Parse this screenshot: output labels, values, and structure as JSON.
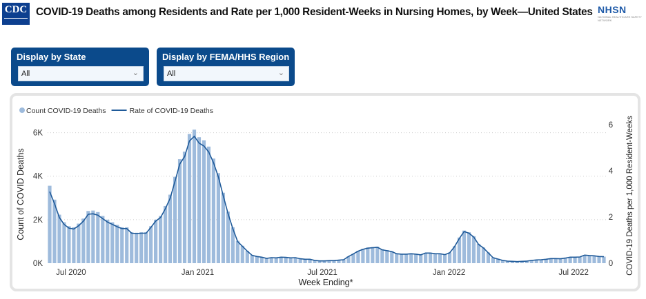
{
  "header": {
    "logo_left": "CDC",
    "title": "COVID-19 Deaths among Residents and Rate per 1,000 Resident-Weeks in Nursing Homes, by Week—United States",
    "logo_right": "NHSN",
    "logo_right_sub": "NATIONAL HEALTHCARE SAFETY NETWORK"
  },
  "filters": [
    {
      "label": "Display by State",
      "value": "All"
    },
    {
      "label": "Display by FEMA/HHS Region",
      "value": "All"
    }
  ],
  "colors": {
    "bar": "#9ebbdc",
    "line": "#1f5a99",
    "filter_bg": "#0b4a8b"
  },
  "chart_data": {
    "type": "bar+line",
    "xlabel": "Week Ending*",
    "ylabel": "Count of COVID Deaths",
    "y2label": "COVID-19 Deaths per 1,000 Resident-Weeks",
    "ylim": [
      0,
      7000
    ],
    "y2lim": [
      0,
      6.3
    ],
    "yticks": [
      "0K",
      "2K",
      "4K",
      "6K"
    ],
    "y2ticks": [
      "0",
      "2",
      "4",
      "6"
    ],
    "xticks": [
      {
        "label": "Jul 2020",
        "date": "2020-07-01"
      },
      {
        "label": "Jan 2021",
        "date": "2021-01-01"
      },
      {
        "label": "Jul 2021",
        "date": "2021-07-01"
      },
      {
        "label": "Jan 2022",
        "date": "2022-01-01"
      },
      {
        "label": "Jul 2022",
        "date": "2022-07-01"
      }
    ],
    "grid": true,
    "legend": {
      "position": "top-left",
      "items": [
        "Count COVID-19 Deaths",
        "Rate of COVID-19 Deaths"
      ]
    },
    "x": [
      "2020-05-31",
      "2020-06-07",
      "2020-06-14",
      "2020-06-21",
      "2020-06-28",
      "2020-07-05",
      "2020-07-12",
      "2020-07-19",
      "2020-07-26",
      "2020-08-02",
      "2020-08-09",
      "2020-08-16",
      "2020-08-23",
      "2020-08-30",
      "2020-09-06",
      "2020-09-13",
      "2020-09-20",
      "2020-09-27",
      "2020-10-04",
      "2020-10-11",
      "2020-10-18",
      "2020-10-25",
      "2020-11-01",
      "2020-11-08",
      "2020-11-15",
      "2020-11-22",
      "2020-11-29",
      "2020-12-06",
      "2020-12-13",
      "2020-12-20",
      "2020-12-27",
      "2021-01-03",
      "2021-01-10",
      "2021-01-17",
      "2021-01-24",
      "2021-01-31",
      "2021-02-07",
      "2021-02-14",
      "2021-02-21",
      "2021-02-28",
      "2021-03-07",
      "2021-03-14",
      "2021-03-21",
      "2021-03-28",
      "2021-04-04",
      "2021-04-11",
      "2021-04-18",
      "2021-04-25",
      "2021-05-02",
      "2021-05-09",
      "2021-05-16",
      "2021-05-23",
      "2021-05-30",
      "2021-06-06",
      "2021-06-13",
      "2021-06-20",
      "2021-06-27",
      "2021-07-04",
      "2021-07-11",
      "2021-07-18",
      "2021-07-25",
      "2021-08-01",
      "2021-08-08",
      "2021-08-15",
      "2021-08-22",
      "2021-08-29",
      "2021-09-05",
      "2021-09-12",
      "2021-09-19",
      "2021-09-26",
      "2021-10-03",
      "2021-10-10",
      "2021-10-17",
      "2021-10-24",
      "2021-10-31",
      "2021-11-07",
      "2021-11-14",
      "2021-11-21",
      "2021-11-28",
      "2021-12-05",
      "2021-12-12",
      "2021-12-19",
      "2021-12-26",
      "2022-01-02",
      "2022-01-09",
      "2022-01-16",
      "2022-01-23",
      "2022-01-30",
      "2022-02-06",
      "2022-02-13",
      "2022-02-20",
      "2022-02-27",
      "2022-03-06",
      "2022-03-13",
      "2022-03-20",
      "2022-03-27",
      "2022-04-03",
      "2022-04-10",
      "2022-04-17",
      "2022-04-24",
      "2022-05-01",
      "2022-05-08",
      "2022-05-15",
      "2022-05-22",
      "2022-05-29",
      "2022-06-05",
      "2022-06-12",
      "2022-06-19",
      "2022-06-26",
      "2022-07-03",
      "2022-07-10",
      "2022-07-17",
      "2022-07-24",
      "2022-07-31",
      "2022-08-07",
      "2022-08-14"
    ],
    "series": [
      {
        "name": "Count COVID-19 Deaths",
        "type": "bar",
        "axis": "left",
        "values": [
          3560,
          2920,
          2230,
          1880,
          1700,
          1650,
          1820,
          2050,
          2400,
          2420,
          2350,
          2170,
          2000,
          1880,
          1760,
          1650,
          1650,
          1420,
          1400,
          1420,
          1420,
          1700,
          2000,
          2170,
          2630,
          3150,
          3970,
          4780,
          5130,
          5940,
          6140,
          5790,
          5650,
          5360,
          4810,
          4140,
          3240,
          2370,
          1650,
          1030,
          800,
          570,
          370,
          310,
          280,
          230,
          260,
          250,
          280,
          270,
          250,
          260,
          200,
          180,
          180,
          130,
          110,
          110,
          120,
          120,
          140,
          160,
          310,
          430,
          570,
          660,
          720,
          740,
          760,
          640,
          600,
          550,
          450,
          430,
          430,
          450,
          430,
          390,
          480,
          480,
          450,
          450,
          410,
          490,
          780,
          1180,
          1500,
          1420,
          1240,
          890,
          720,
          490,
          260,
          200,
          130,
          100,
          90,
          80,
          90,
          100,
          130,
          150,
          160,
          190,
          220,
          220,
          210,
          240,
          280,
          280,
          290,
          380,
          360,
          350,
          320,
          300
        ]
      },
      {
        "name": "Rate of COVID-19 Deaths",
        "type": "line",
        "axis": "right",
        "values": [
          3.1,
          2.58,
          1.98,
          1.68,
          1.52,
          1.48,
          1.62,
          1.82,
          2.12,
          2.14,
          2.08,
          1.93,
          1.78,
          1.68,
          1.58,
          1.5,
          1.5,
          1.3,
          1.28,
          1.3,
          1.3,
          1.55,
          1.82,
          1.98,
          2.36,
          2.82,
          3.54,
          4.3,
          4.62,
          5.3,
          5.5,
          5.2,
          5.08,
          4.82,
          4.35,
          3.74,
          2.93,
          2.15,
          1.5,
          0.94,
          0.73,
          0.52,
          0.34,
          0.29,
          0.26,
          0.21,
          0.24,
          0.23,
          0.26,
          0.25,
          0.23,
          0.24,
          0.19,
          0.17,
          0.17,
          0.12,
          0.1,
          0.1,
          0.11,
          0.11,
          0.13,
          0.15,
          0.29,
          0.4,
          0.52,
          0.6,
          0.65,
          0.67,
          0.69,
          0.58,
          0.54,
          0.5,
          0.41,
          0.39,
          0.39,
          0.41,
          0.39,
          0.36,
          0.44,
          0.44,
          0.41,
          0.41,
          0.37,
          0.45,
          0.71,
          1.07,
          1.37,
          1.3,
          1.13,
          0.81,
          0.66,
          0.45,
          0.24,
          0.18,
          0.12,
          0.09,
          0.08,
          0.07,
          0.08,
          0.09,
          0.12,
          0.14,
          0.15,
          0.17,
          0.2,
          0.2,
          0.19,
          0.22,
          0.26,
          0.26,
          0.27,
          0.35,
          0.33,
          0.32,
          0.29,
          0.28
        ]
      }
    ]
  }
}
